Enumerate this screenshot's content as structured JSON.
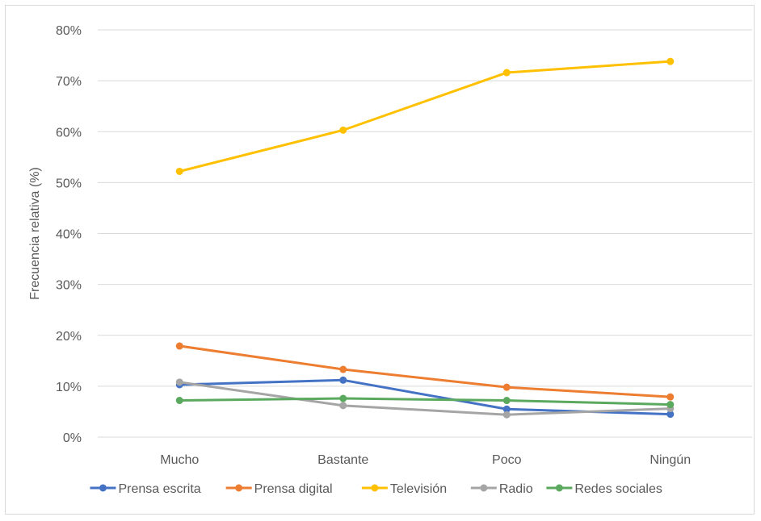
{
  "chart_data": {
    "type": "line",
    "title": "",
    "xlabel": "",
    "ylabel": "Frecuencia relativa (%)",
    "categories": [
      "Mucho",
      "Bastante",
      "Poco",
      "Ningún"
    ],
    "ylim": [
      0,
      80
    ],
    "yticks": [
      "0%",
      "10%",
      "20%",
      "30%",
      "40%",
      "50%",
      "60%",
      "70%",
      "80%"
    ],
    "grid": true,
    "legend_position": "bottom",
    "series": [
      {
        "name": "Prensa escrita",
        "color": "#4472C4",
        "values": [
          10.3,
          11.2,
          5.5,
          4.5
        ]
      },
      {
        "name": "Prensa digital",
        "color": "#ED7D31",
        "values": [
          17.9,
          13.3,
          9.8,
          7.9
        ]
      },
      {
        "name": "Televisión",
        "color": "#FFC000",
        "values": [
          52.2,
          60.3,
          71.6,
          73.8
        ]
      },
      {
        "name": "Radio",
        "color": "#A5A5A5",
        "values": [
          10.8,
          6.2,
          4.4,
          5.6
        ]
      },
      {
        "name": "Redes sociales",
        "color": "#5BA95E",
        "values": [
          7.2,
          7.6,
          7.2,
          6.4
        ]
      }
    ]
  }
}
